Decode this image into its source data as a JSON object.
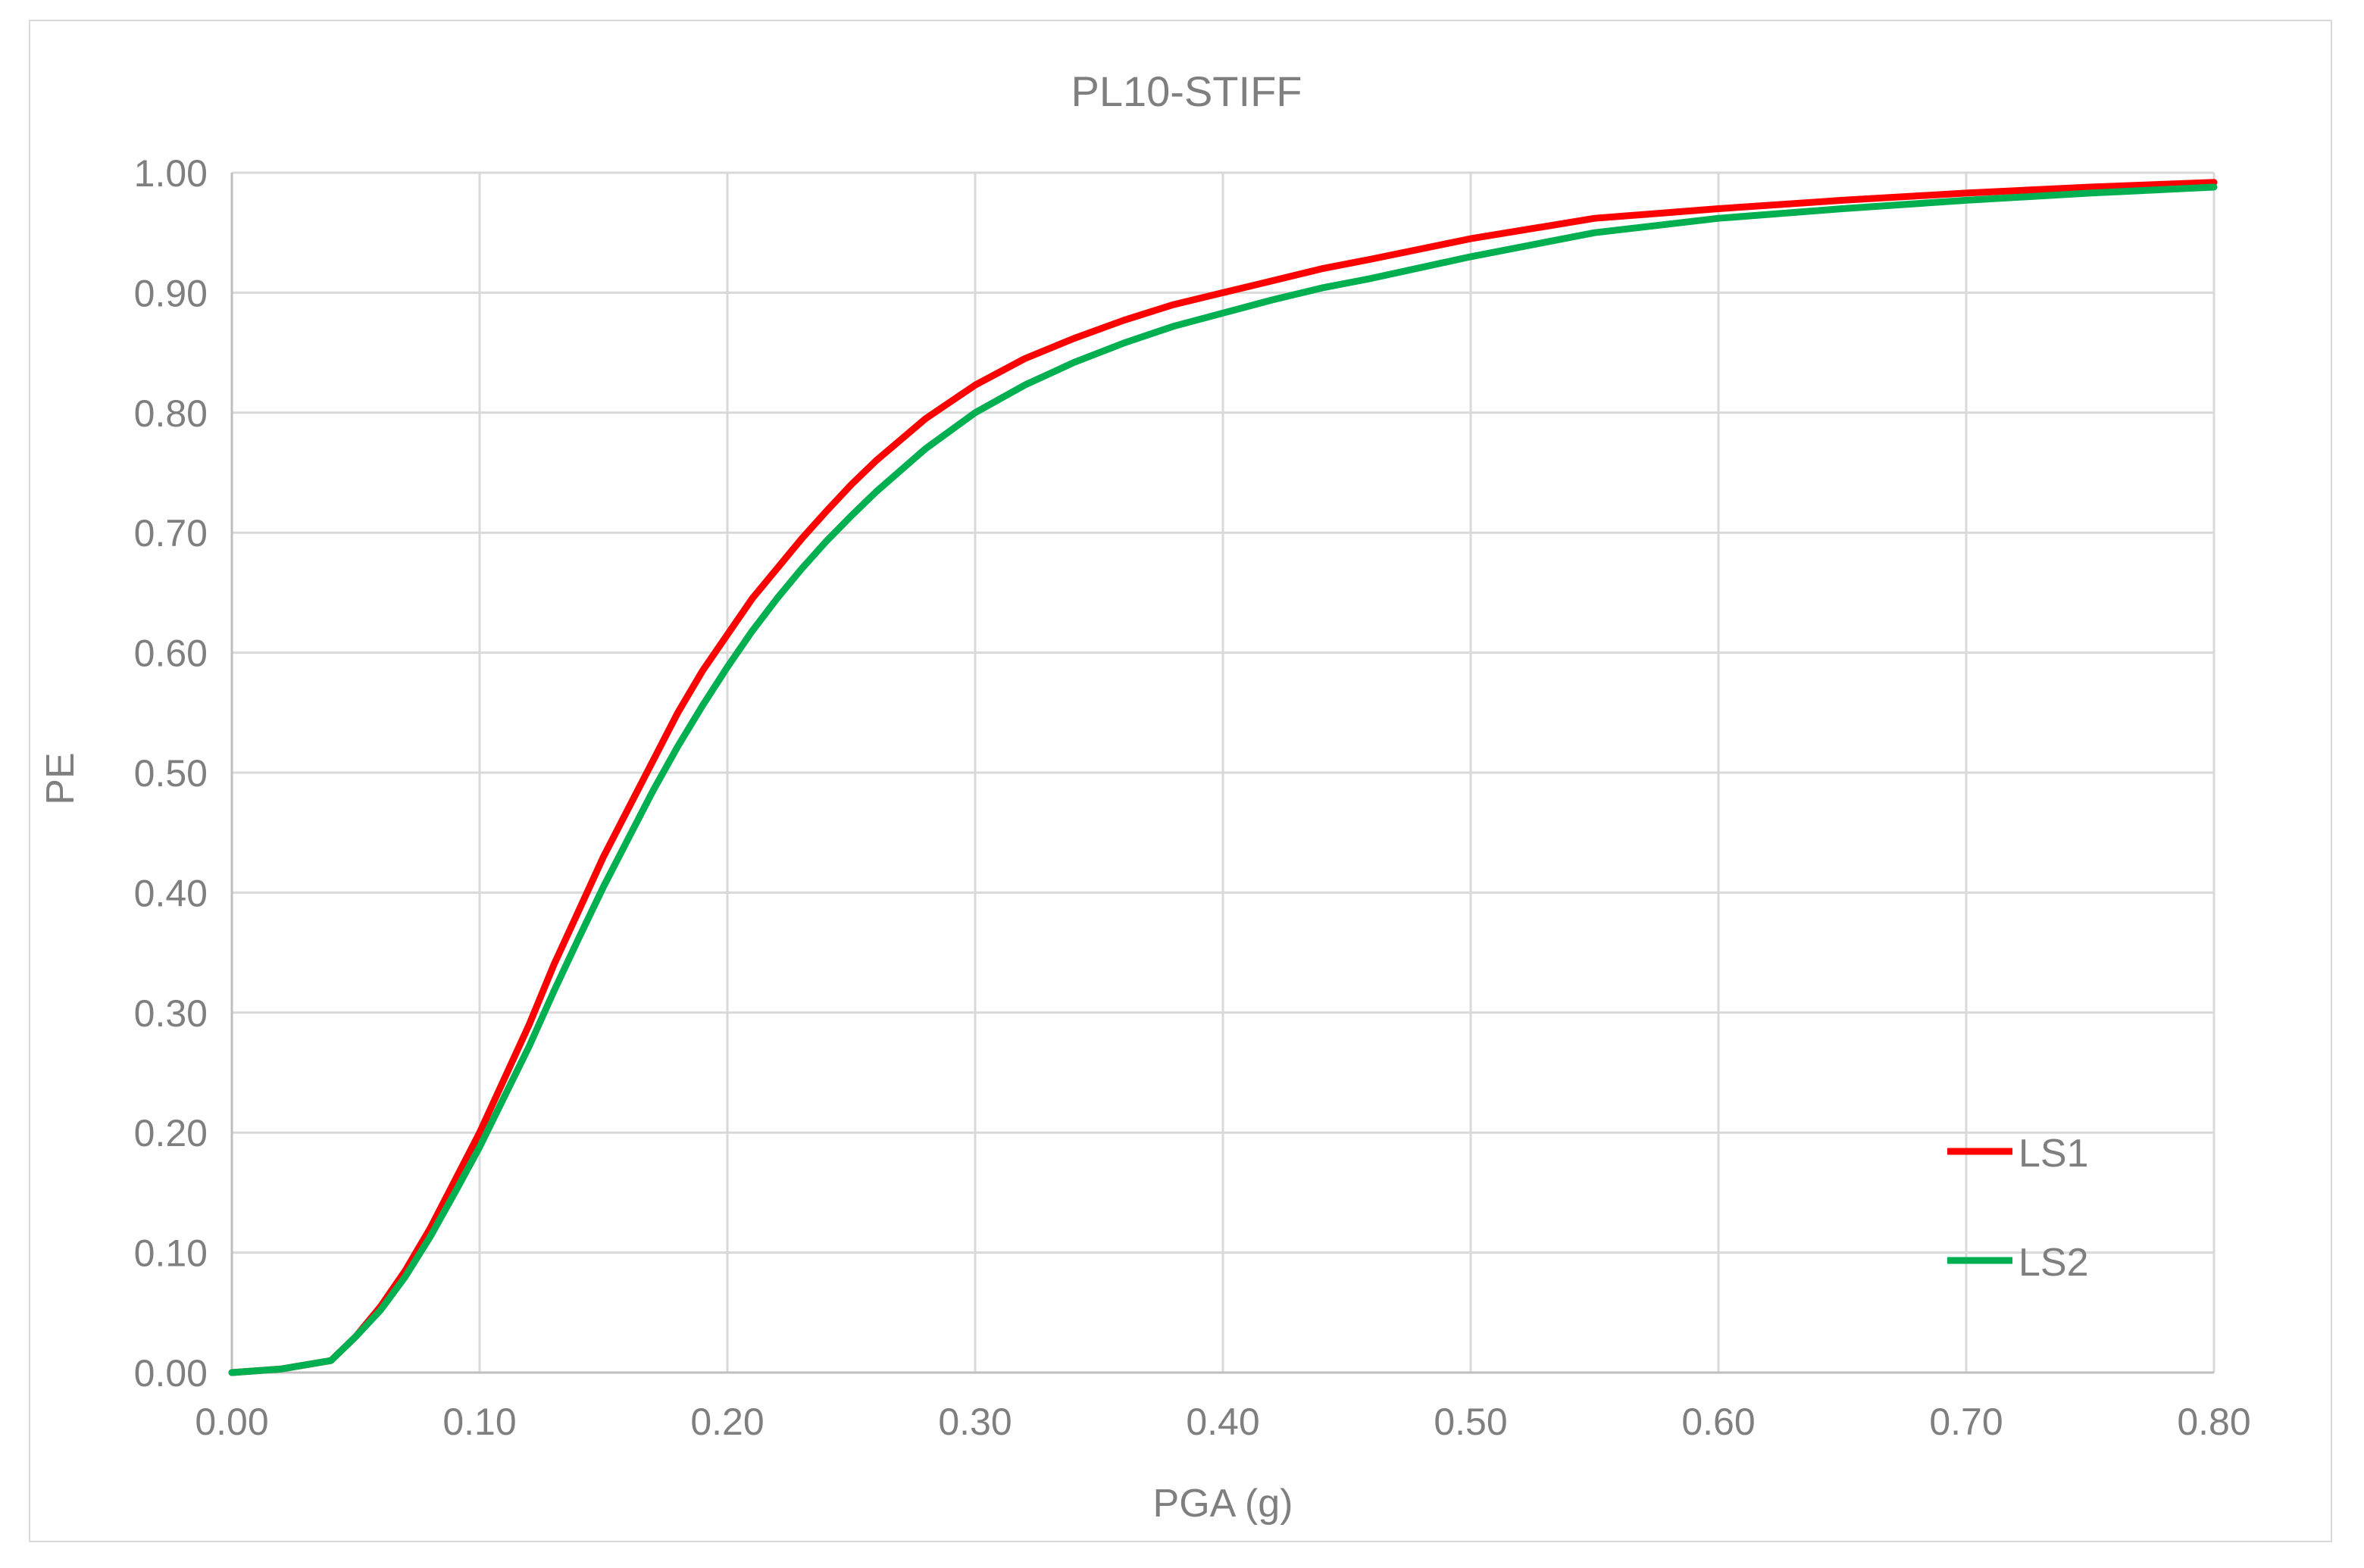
{
  "chart_data": {
    "type": "line",
    "title": "PL10-STIFF",
    "xlabel": "PGA (g)",
    "ylabel": "PE",
    "xlim": [
      0,
      0.8
    ],
    "ylim": [
      0,
      1
    ],
    "x_ticks": [
      "0.00",
      "0.10",
      "0.20",
      "0.30",
      "0.40",
      "0.50",
      "0.60",
      "0.70",
      "0.80"
    ],
    "y_ticks": [
      "0.00",
      "0.10",
      "0.20",
      "0.30",
      "0.40",
      "0.50",
      "0.60",
      "0.70",
      "0.80",
      "0.90",
      "1.00"
    ],
    "grid": true,
    "legend_position": "bottom-right",
    "series": [
      {
        "name": "LS1",
        "color": "#ff0000",
        "x": [
          0.0,
          0.02,
          0.04,
          0.05,
          0.06,
          0.07,
          0.08,
          0.09,
          0.1,
          0.11,
          0.12,
          0.13,
          0.14,
          0.15,
          0.16,
          0.17,
          0.18,
          0.19,
          0.2,
          0.21,
          0.22,
          0.23,
          0.24,
          0.25,
          0.26,
          0.28,
          0.3,
          0.32,
          0.34,
          0.36,
          0.38,
          0.4,
          0.42,
          0.44,
          0.46,
          0.5,
          0.55,
          0.6,
          0.65,
          0.7,
          0.75,
          0.8
        ],
        "y": [
          0.0,
          0.003,
          0.01,
          0.03,
          0.055,
          0.085,
          0.12,
          0.16,
          0.2,
          0.245,
          0.29,
          0.34,
          0.385,
          0.43,
          0.47,
          0.51,
          0.55,
          0.585,
          0.615,
          0.645,
          0.67,
          0.695,
          0.718,
          0.74,
          0.76,
          0.795,
          0.823,
          0.845,
          0.862,
          0.877,
          0.89,
          0.9,
          0.91,
          0.92,
          0.928,
          0.945,
          0.962,
          0.97,
          0.977,
          0.983,
          0.988,
          0.992
        ]
      },
      {
        "name": "LS2",
        "color": "#00b050",
        "x": [
          0.0,
          0.02,
          0.04,
          0.05,
          0.06,
          0.07,
          0.08,
          0.09,
          0.1,
          0.11,
          0.12,
          0.13,
          0.14,
          0.15,
          0.16,
          0.17,
          0.18,
          0.19,
          0.2,
          0.21,
          0.22,
          0.23,
          0.24,
          0.25,
          0.26,
          0.28,
          0.3,
          0.32,
          0.34,
          0.36,
          0.38,
          0.4,
          0.42,
          0.44,
          0.46,
          0.5,
          0.55,
          0.6,
          0.65,
          0.7,
          0.75,
          0.8
        ],
        "y": [
          0.0,
          0.003,
          0.01,
          0.03,
          0.052,
          0.08,
          0.113,
          0.15,
          0.188,
          0.23,
          0.272,
          0.318,
          0.362,
          0.405,
          0.445,
          0.485,
          0.522,
          0.556,
          0.588,
          0.618,
          0.645,
          0.67,
          0.693,
          0.714,
          0.734,
          0.77,
          0.8,
          0.823,
          0.842,
          0.858,
          0.872,
          0.883,
          0.894,
          0.904,
          0.912,
          0.93,
          0.95,
          0.962,
          0.97,
          0.977,
          0.983,
          0.988
        ]
      }
    ]
  }
}
